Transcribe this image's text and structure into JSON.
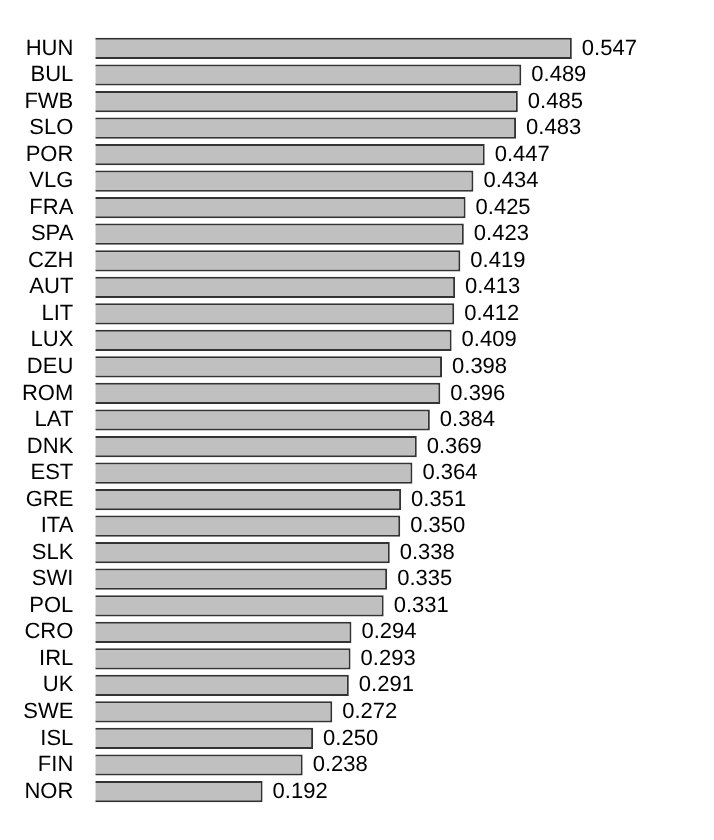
{
  "chart_data": {
    "type": "bar",
    "orientation": "horizontal",
    "legend": false,
    "categories": [
      "HUN",
      "BUL",
      "FWB",
      "SLO",
      "POR",
      "VLG",
      "FRA",
      "SPA",
      "CZH",
      "AUT",
      "LIT",
      "LUX",
      "DEU",
      "ROM",
      "LAT",
      "DNK",
      "EST",
      "GRE",
      "ITA",
      "SLK",
      "SWI",
      "POL",
      "CRO",
      "IRL",
      "UK",
      "SWE",
      "ISL",
      "FIN",
      "NOR"
    ],
    "values": [
      0.547,
      0.489,
      0.485,
      0.483,
      0.447,
      0.434,
      0.425,
      0.423,
      0.419,
      0.413,
      0.412,
      0.409,
      0.398,
      0.396,
      0.384,
      0.369,
      0.364,
      0.351,
      0.35,
      0.338,
      0.335,
      0.331,
      0.294,
      0.293,
      0.291,
      0.272,
      0.25,
      0.238,
      0.192
    ],
    "value_labels": [
      "0.547",
      "0.489",
      "0.485",
      "0.483",
      "0.447",
      "0.434",
      "0.425",
      "0.423",
      "0.419",
      "0.413",
      "0.412",
      "0.409",
      "0.398",
      "0.396",
      "0.384",
      "0.369",
      "0.364",
      "0.351",
      "0.350",
      "0.338",
      "0.335",
      "0.331",
      "0.294",
      "0.293",
      "0.291",
      "0.272",
      "0.250",
      "0.238",
      "0.192"
    ],
    "color": "#c0c0c0",
    "tick_labels": "y"
  }
}
